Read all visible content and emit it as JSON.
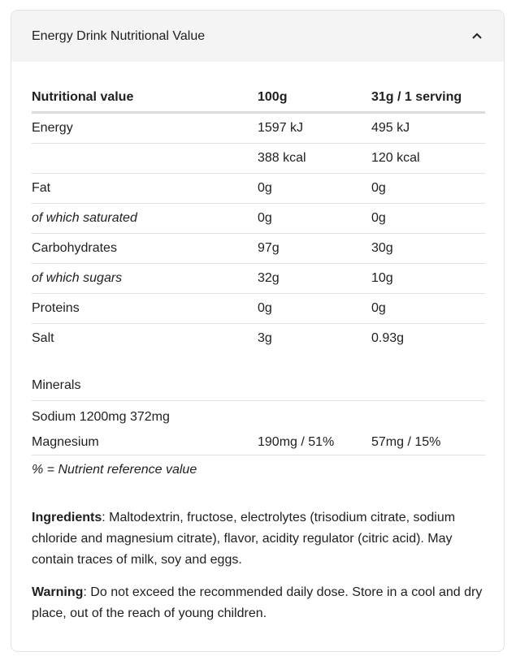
{
  "header": {
    "title": "Energy Drink Nutritional Value",
    "toggle_icon": "chevron-up-icon"
  },
  "table": {
    "columns": [
      "Nutritional value",
      "100g",
      "31g / 1 serving"
    ],
    "rows": [
      {
        "label": "Energy",
        "per100": "1597 kJ",
        "serving": "495 kJ",
        "italic": false
      },
      {
        "label": "",
        "per100": "388 kcal",
        "serving": "120 kcal",
        "italic": false
      },
      {
        "label": "Fat",
        "per100": "0g",
        "serving": "0g",
        "italic": false
      },
      {
        "label": "of which saturated",
        "per100": "0g",
        "serving": "0g",
        "italic": true
      },
      {
        "label": "Carbohydrates",
        "per100": "97g",
        "serving": "30g",
        "italic": false
      },
      {
        "label": "of which sugars",
        "per100": "32g",
        "serving": "10g",
        "italic": true
      },
      {
        "label": "Proteins",
        "per100": "0g",
        "serving": "0g",
        "italic": false
      },
      {
        "label": "Salt",
        "per100": "3g",
        "serving": "0.93g",
        "italic": false
      }
    ]
  },
  "minerals": {
    "title": "Minerals",
    "sodium": "Sodium 1200mg 372mg",
    "magnesium": {
      "label": "Magnesium",
      "per100": "190mg / 51%",
      "serving": "57mg / 15%"
    },
    "note": "% = Nutrient reference value"
  },
  "ingredients": {
    "label": "Ingredients",
    "text": ": Maltodextrin, fructose, electrolytes (trisodium citrate, sodium chloride and magnesium citrate), flavor, acidity regulator (citric acid). May contain traces of milk, soy and eggs."
  },
  "warning": {
    "label": "Warning",
    "text": ": Do not exceed the recommended daily dose. Store in a cool and dry place, out of the reach of young children."
  }
}
